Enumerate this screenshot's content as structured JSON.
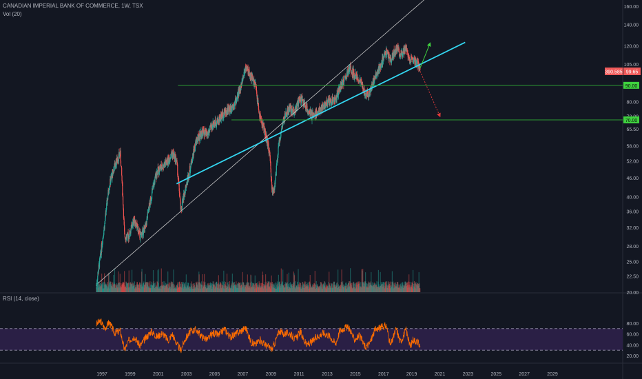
{
  "symbol_header": "CANADIAN IMPERIAL BANK OF COMMERCE, 1W, TSX",
  "vol_label": "Vol (20)",
  "rsi_label": "RSI (14, close)",
  "colors": {
    "background": "#131722",
    "up_candle": "#26a69a",
    "down_candle": "#ef5350",
    "trendline_cyan": "#33d6f0",
    "trendline_white": "#c8c8c8",
    "support_line": "#2e9e32",
    "support_label_bg": "#3fd23f",
    "rsi_line": "#ff6d00",
    "rsi_band": "#2a1f45",
    "price_badge_bg": "#f05a5a",
    "arrow_green": "#3fd23f",
    "arrow_red": "#e03a3a"
  },
  "chart_data": [
    {
      "type": "candlestick",
      "title": "CANADIAN IMPERIAL BANK OF COMMERCE, 1W, TSX",
      "y_scale": "log",
      "y_ticks": [
        160.0,
        140.0,
        120.0,
        105.0,
        90.0,
        80.0,
        72.0,
        65.5,
        58.0,
        52.0,
        46.0,
        40.0,
        36.0,
        32.0,
        28.0,
        25.0,
        22.5,
        20.0
      ],
      "y_tick_labels": [
        "160.00",
        "140.00",
        "120.00",
        "105.00",
        "90.00",
        "80.00",
        "72.00",
        "65.50",
        "58.00",
        "52.00",
        "46.00",
        "40.00",
        "36.00",
        "32.00",
        "28.00",
        "25.00",
        "22.50",
        "20.00"
      ],
      "x_ticks": [
        1997,
        1999,
        2001,
        2003,
        2005,
        2007,
        2009,
        2011,
        2013,
        2015,
        2017,
        2019,
        2021,
        2023,
        2025,
        2027,
        2029
      ],
      "price_path": [
        [
          1996.6,
          21
        ],
        [
          1996.9,
          26
        ],
        [
          1997.2,
          33
        ],
        [
          1997.5,
          43
        ],
        [
          1997.9,
          50
        ],
        [
          1998.3,
          55
        ],
        [
          1998.6,
          30
        ],
        [
          1998.9,
          30
        ],
        [
          1999.3,
          34
        ],
        [
          1999.7,
          30
        ],
        [
          2000.1,
          32
        ],
        [
          2000.5,
          40
        ],
        [
          2000.9,
          48
        ],
        [
          2001.3,
          50
        ],
        [
          2001.7,
          52
        ],
        [
          2002.0,
          55
        ],
        [
          2002.3,
          52
        ],
        [
          2002.6,
          36
        ],
        [
          2002.9,
          42
        ],
        [
          2003.3,
          50
        ],
        [
          2003.7,
          60
        ],
        [
          2004.1,
          64
        ],
        [
          2004.5,
          63
        ],
        [
          2004.9,
          68
        ],
        [
          2005.3,
          70
        ],
        [
          2005.7,
          74
        ],
        [
          2006.1,
          76
        ],
        [
          2006.5,
          80
        ],
        [
          2006.9,
          90
        ],
        [
          2007.2,
          103
        ],
        [
          2007.6,
          96
        ],
        [
          2007.9,
          90
        ],
        [
          2008.2,
          72
        ],
        [
          2008.5,
          66
        ],
        [
          2008.9,
          55
        ],
        [
          2009.1,
          41
        ],
        [
          2009.3,
          44
        ],
        [
          2009.6,
          60
        ],
        [
          2009.9,
          70
        ],
        [
          2010.3,
          76
        ],
        [
          2010.7,
          75
        ],
        [
          2011.1,
          82
        ],
        [
          2011.5,
          77
        ],
        [
          2011.9,
          72
        ],
        [
          2012.3,
          74
        ],
        [
          2012.7,
          77
        ],
        [
          2013.1,
          80
        ],
        [
          2013.6,
          81
        ],
        [
          2013.9,
          88
        ],
        [
          2014.3,
          95
        ],
        [
          2014.6,
          102
        ],
        [
          2014.9,
          98
        ],
        [
          2015.3,
          93
        ],
        [
          2015.7,
          85
        ],
        [
          2016.0,
          85
        ],
        [
          2016.4,
          96
        ],
        [
          2016.8,
          104
        ],
        [
          2017.2,
          115
        ],
        [
          2017.5,
          108
        ],
        [
          2017.9,
          118
        ],
        [
          2018.2,
          113
        ],
        [
          2018.6,
          118
        ],
        [
          2018.9,
          108
        ],
        [
          2019.1,
          108
        ],
        [
          2019.4,
          106
        ],
        [
          2019.6,
          100
        ]
      ],
      "volume_label": "Vol (20)",
      "annotations": {
        "last_price": "99.65",
        "countdown": "390.585",
        "support_levels": [
          {
            "label": "90.00",
            "value": 90.0
          },
          {
            "label": "70.00",
            "value": 70.0
          }
        ],
        "trendline_cyan": {
          "from": [
            2002.3,
            44
          ],
          "to": [
            2022.8,
            123
          ]
        },
        "trendline_white": {
          "from": [
            1996.7,
            21.3
          ],
          "to": [
            2021.3,
            190
          ]
        },
        "arrow_up": {
          "from": [
            2019.6,
            102
          ],
          "to": [
            2020.3,
            122
          ]
        },
        "arrow_down": {
          "from": [
            2019.6,
            99.65
          ],
          "to": [
            2021.0,
            72
          ]
        }
      }
    },
    {
      "type": "line",
      "title": "RSI (14, close)",
      "y_ticks": [
        80.0,
        60.0,
        40.0,
        20.0
      ],
      "y_tick_labels": [
        "80.00",
        "60.00",
        "40.00",
        "20.00"
      ],
      "bands": [
        70,
        30
      ],
      "rsi_path": [
        [
          1996.6,
          78
        ],
        [
          1996.9,
          84
        ],
        [
          1997.2,
          70
        ],
        [
          1997.5,
          82
        ],
        [
          1997.9,
          62
        ],
        [
          1998.3,
          66
        ],
        [
          1998.6,
          30
        ],
        [
          1998.9,
          48
        ],
        [
          1999.3,
          55
        ],
        [
          1999.7,
          38
        ],
        [
          2000.1,
          52
        ],
        [
          2000.5,
          65
        ],
        [
          2000.9,
          55
        ],
        [
          2001.3,
          62
        ],
        [
          2001.7,
          48
        ],
        [
          2002.0,
          60
        ],
        [
          2002.3,
          42
        ],
        [
          2002.6,
          30
        ],
        [
          2002.9,
          50
        ],
        [
          2003.3,
          65
        ],
        [
          2003.7,
          68
        ],
        [
          2004.1,
          55
        ],
        [
          2004.5,
          50
        ],
        [
          2004.9,
          62
        ],
        [
          2005.3,
          58
        ],
        [
          2005.7,
          70
        ],
        [
          2006.1,
          54
        ],
        [
          2006.5,
          60
        ],
        [
          2006.9,
          66
        ],
        [
          2007.2,
          72
        ],
        [
          2007.6,
          45
        ],
        [
          2007.9,
          40
        ],
        [
          2008.2,
          50
        ],
        [
          2008.5,
          42
        ],
        [
          2008.9,
          35
        ],
        [
          2009.1,
          32
        ],
        [
          2009.3,
          45
        ],
        [
          2009.6,
          66
        ],
        [
          2009.9,
          60
        ],
        [
          2010.3,
          62
        ],
        [
          2010.7,
          50
        ],
        [
          2011.1,
          64
        ],
        [
          2011.5,
          40
        ],
        [
          2011.9,
          45
        ],
        [
          2012.3,
          55
        ],
        [
          2012.7,
          62
        ],
        [
          2013.1,
          58
        ],
        [
          2013.6,
          42
        ],
        [
          2013.9,
          66
        ],
        [
          2014.3,
          72
        ],
        [
          2014.6,
          70
        ],
        [
          2014.9,
          50
        ],
        [
          2015.3,
          56
        ],
        [
          2015.7,
          36
        ],
        [
          2016.0,
          42
        ],
        [
          2016.4,
          68
        ],
        [
          2016.8,
          72
        ],
        [
          2017.2,
          76
        ],
        [
          2017.5,
          38
        ],
        [
          2017.9,
          70
        ],
        [
          2018.2,
          45
        ],
        [
          2018.6,
          68
        ],
        [
          2018.9,
          36
        ],
        [
          2019.1,
          50
        ],
        [
          2019.4,
          46
        ],
        [
          2019.6,
          36
        ]
      ]
    }
  ]
}
